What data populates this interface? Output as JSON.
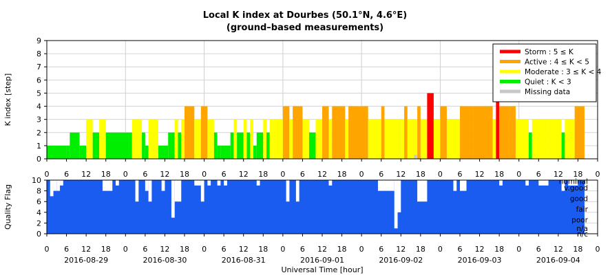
{
  "chart_data": [
    {
      "type": "bar",
      "title": "Local K index at Dourbes (50.1°N, 4.6°E)",
      "subtitle": "(ground–based measurements)",
      "ylabel": "K index [step]",
      "xlabel": "",
      "ylim": [
        0,
        9
      ],
      "yticks": [
        0,
        1,
        2,
        3,
        4,
        5,
        6,
        7,
        8,
        9
      ],
      "xlim_hours": [
        0,
        168
      ],
      "grid": true,
      "legend_position": "top-right",
      "legend": [
        {
          "key": "storm",
          "label": "Storm : 5 ≤ K",
          "color": "#ff0000"
        },
        {
          "key": "active",
          "label": "Active : 4 ≤ K < 5",
          "color": "#ffa500"
        },
        {
          "key": "moderate",
          "label": "Moderate : 3 ≤ K < 4",
          "color": "#ffff00"
        },
        {
          "key": "quiet",
          "label": "Quiet : K < 3",
          "color": "#00ee00"
        },
        {
          "key": "missing",
          "label": "Missing data",
          "color": "#c8c8c8"
        }
      ],
      "series_note": "segments are [start_hour, end_hour, K] counted from 2016-08-29 00:00 UT",
      "segments": [
        [
          0,
          6,
          1
        ],
        [
          6,
          7,
          1
        ],
        [
          7,
          10,
          2
        ],
        [
          10,
          12,
          1
        ],
        [
          12,
          14,
          3
        ],
        [
          14,
          15,
          2
        ],
        [
          15,
          16,
          2
        ],
        [
          16,
          18,
          3
        ],
        [
          18,
          25,
          2
        ],
        [
          25,
          26,
          2
        ],
        [
          26,
          29,
          3
        ],
        [
          29,
          30,
          2
        ],
        [
          30,
          31,
          1
        ],
        [
          31,
          34,
          3
        ],
        [
          34,
          37,
          1
        ],
        [
          37,
          38,
          2
        ],
        [
          38,
          39,
          2
        ],
        [
          39,
          40,
          3
        ],
        [
          40,
          41,
          2
        ],
        [
          41,
          42,
          3
        ],
        [
          42,
          45,
          4
        ],
        [
          45,
          47,
          3
        ],
        [
          47,
          49,
          4
        ],
        [
          49,
          51,
          3
        ],
        [
          51,
          52,
          2
        ],
        [
          52,
          53,
          1
        ],
        [
          53,
          56,
          1
        ],
        [
          56,
          57,
          2
        ],
        [
          57,
          58,
          3
        ],
        [
          58,
          60,
          2
        ],
        [
          60,
          61,
          3
        ],
        [
          61,
          62,
          2
        ],
        [
          62,
          63,
          3
        ],
        [
          63,
          64,
          1
        ],
        [
          64,
          66,
          2
        ],
        [
          66,
          67,
          3
        ],
        [
          67,
          68,
          2
        ],
        [
          68,
          69,
          3
        ],
        [
          69,
          72,
          3
        ],
        [
          72,
          74,
          4
        ],
        [
          74,
          75,
          3
        ],
        [
          75,
          78,
          4
        ],
        [
          78,
          80,
          3
        ],
        [
          80,
          82,
          2
        ],
        [
          82,
          84,
          3
        ],
        [
          84,
          86,
          4
        ],
        [
          86,
          87,
          3
        ],
        [
          87,
          91,
          4
        ],
        [
          91,
          92,
          3
        ],
        [
          92,
          98,
          4
        ],
        [
          98,
          102,
          3
        ],
        [
          102,
          103,
          4
        ],
        [
          103,
          105,
          3
        ],
        [
          105,
          107,
          3
        ],
        [
          107,
          108,
          3
        ],
        [
          108,
          109,
          3
        ],
        [
          109,
          110,
          4
        ],
        [
          110,
          113,
          3
        ],
        [
          113,
          114,
          4
        ],
        [
          114,
          116,
          3
        ],
        [
          116,
          118,
          5
        ],
        [
          118,
          120,
          3
        ],
        [
          120,
          122,
          4
        ],
        [
          122,
          126,
          3
        ],
        [
          126,
          130,
          4
        ],
        [
          130,
          136,
          4
        ],
        [
          136,
          137,
          3
        ],
        [
          137,
          138,
          5
        ],
        [
          138,
          141,
          4
        ],
        [
          141,
          143,
          4
        ],
        [
          143,
          146,
          3
        ],
        [
          146,
          147,
          3
        ],
        [
          147,
          148,
          2
        ],
        [
          148,
          151,
          3
        ],
        [
          151,
          153,
          3
        ],
        [
          153,
          157,
          3
        ],
        [
          157,
          158,
          2
        ],
        [
          158,
          161,
          3
        ],
        [
          161,
          164,
          4
        ]
      ],
      "missing_marks": [
        112
      ],
      "xticks_hours": [
        0,
        6,
        12,
        18,
        24,
        30,
        36,
        42,
        48,
        54,
        60,
        66,
        72,
        78,
        84,
        90,
        96,
        102,
        108,
        114,
        120,
        126,
        132,
        138,
        144,
        150,
        156,
        162,
        168
      ],
      "xtick_labels": [
        "0",
        "6",
        "12",
        "18",
        "0",
        "6",
        "12",
        "18",
        "0",
        "6",
        "12",
        "18",
        "0",
        "6",
        "12",
        "18",
        "0",
        "6",
        "12",
        "18",
        "0",
        "6",
        "12",
        "18",
        "0",
        "6",
        "12",
        "18",
        "0"
      ]
    },
    {
      "type": "area",
      "ylabel": "Quality Flag",
      "xlabel": "Universal Time [hour]",
      "ylim": [
        0,
        10
      ],
      "yticks": [
        0,
        2,
        4,
        6,
        8,
        10
      ],
      "color": "#1a5cf0",
      "quality_levels": [
        {
          "label": "nominal",
          "value": 9.8
        },
        {
          "label": "v.good",
          "value": 8.6
        },
        {
          "label": "good",
          "value": 6.6
        },
        {
          "label": "fair",
          "value": 4.6
        },
        {
          "label": "poor",
          "value": 2.6
        },
        {
          "label": "n/a",
          "value": 1.0
        },
        {
          "label": "n/c",
          "value": 0.0
        }
      ],
      "quality_note": "flag drops are [start_hour, end_hour, value]; elsewhere the flag is 10; the flag ends at hour 164",
      "quality_dips": [
        [
          0,
          1,
          10
        ],
        [
          1,
          2,
          7
        ],
        [
          2,
          3,
          8
        ],
        [
          3,
          4,
          8
        ],
        [
          4,
          5,
          9
        ],
        [
          17,
          20,
          8
        ],
        [
          21,
          22,
          9
        ],
        [
          27,
          28,
          6
        ],
        [
          30,
          31,
          8
        ],
        [
          31,
          32,
          6
        ],
        [
          35,
          36,
          8
        ],
        [
          38,
          39,
          3
        ],
        [
          39,
          41,
          6
        ],
        [
          45,
          47,
          9
        ],
        [
          47,
          48,
          6
        ],
        [
          49,
          50,
          9
        ],
        [
          52,
          53,
          9
        ],
        [
          54,
          55,
          9
        ],
        [
          64,
          65,
          9
        ],
        [
          73,
          74,
          6
        ],
        [
          76,
          77,
          6
        ],
        [
          86,
          87,
          9
        ],
        [
          101,
          106,
          8
        ],
        [
          106,
          107,
          1
        ],
        [
          107,
          108,
          4
        ],
        [
          113,
          116,
          6
        ],
        [
          124,
          125,
          8
        ],
        [
          126,
          128,
          8
        ],
        [
          138,
          139,
          9
        ],
        [
          146,
          147,
          9
        ],
        [
          150,
          153,
          9
        ],
        [
          157,
          158,
          8
        ],
        [
          159,
          162,
          9
        ]
      ],
      "date_labels": [
        {
          "text": "2016-08-29",
          "hour": 12
        },
        {
          "text": "2016-08-30",
          "hour": 36
        },
        {
          "text": "2016-08-31",
          "hour": 60
        },
        {
          "text": "2016-09-01",
          "hour": 84
        },
        {
          "text": "2016-09-02",
          "hour": 108
        },
        {
          "text": "2016-09-03",
          "hour": 132
        },
        {
          "text": "2016-09-04",
          "hour": 156
        }
      ]
    }
  ],
  "labels": {
    "title": "Local K index at Dourbes (50.1°N, 4.6°E)",
    "subtitle": "(ground–based measurements)",
    "k_ylabel": "K index [step]",
    "q_ylabel": "Quality Flag",
    "xlabel": "Universal Time [hour]"
  }
}
